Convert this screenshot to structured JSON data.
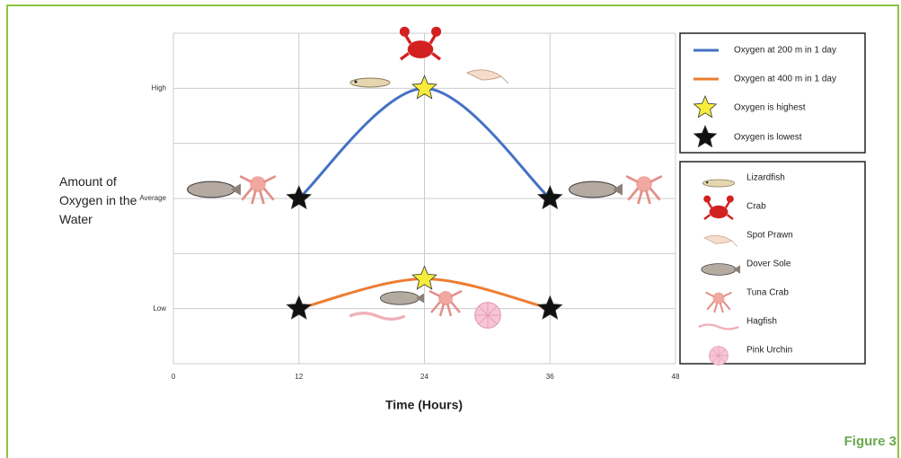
{
  "chart_data": {
    "type": "line",
    "x": [
      12,
      24,
      36
    ],
    "series": [
      {
        "name": "Oxygen at 200 m in 1 day",
        "color": "#4472c4",
        "values": [
          2,
          3,
          2
        ]
      },
      {
        "name": "Oxygen at 400 m in 1 day",
        "color": "#ed7d31",
        "values": [
          1,
          1.27,
          1
        ]
      }
    ],
    "marker_legend": [
      {
        "name": "Oxygen is highest",
        "color": "#f7ec3c"
      },
      {
        "name": "Oxygen is lowest",
        "color": "#111111"
      }
    ],
    "animal_legend": [
      "Lizardfish",
      "Crab",
      "Spot Prawn",
      "Dover Sole",
      "Tuna Crab",
      "Hagfish",
      "Pink Urchin"
    ],
    "xlim": [
      0,
      48
    ],
    "xticks": [
      0,
      12,
      24,
      36,
      48
    ],
    "ylim": [
      0.5,
      3.5
    ],
    "yticks": [
      {
        "value": 1,
        "label": "Low"
      },
      {
        "value": 2,
        "label": "Average"
      },
      {
        "value": 3,
        "label": "High"
      }
    ],
    "ygrid": [
      0.5,
      1.5,
      2.5,
      3.5
    ],
    "grid": true,
    "ylabel": "Amount of Oxygen in the Water",
    "xlabel": "Time (Hours)",
    "caption": "Figure 3"
  }
}
